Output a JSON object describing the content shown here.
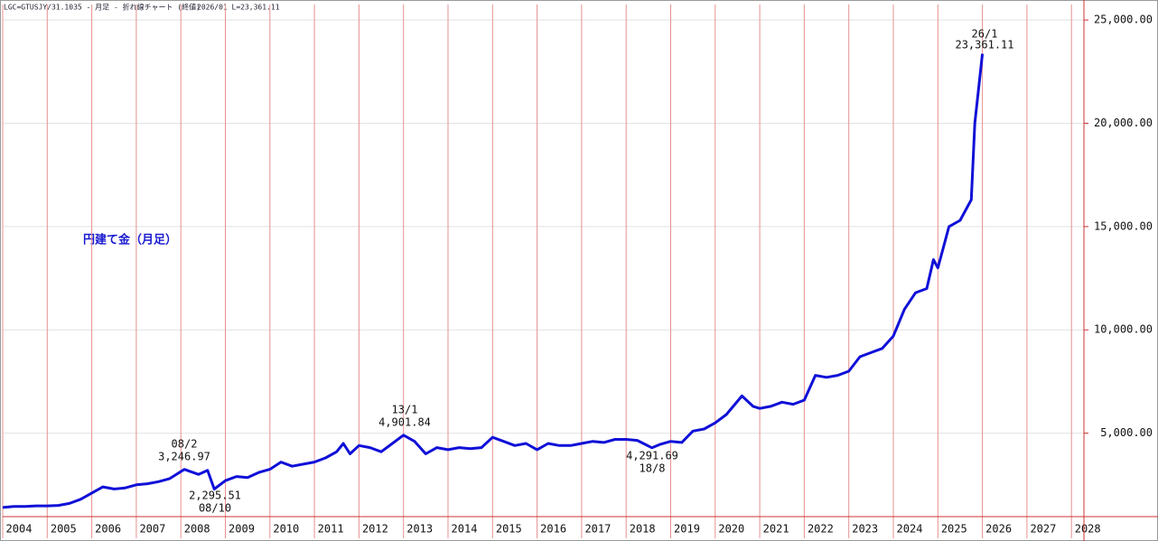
{
  "chart_data": {
    "type": "line",
    "header": "LGC=GTUSJY/31.1035 - 月足 - 折れ線チャート (終値)",
    "header_value": "2026/01 L=23,361.11",
    "label": "円建て金（月足）",
    "annotations": [
      [
        "08/2",
        "3,246.97"
      ],
      [
        "2,295.51",
        "08/10"
      ],
      [
        "13/1",
        "4,901.84"
      ],
      [
        "4,291.69",
        "18/8"
      ],
      [
        "26/1",
        "23,361.11"
      ]
    ],
    "x": [
      2004.0,
      2004.25,
      2004.5,
      2004.75,
      2005.0,
      2005.25,
      2005.5,
      2005.75,
      2006.0,
      2006.25,
      2006.5,
      2006.75,
      2007.0,
      2007.25,
      2007.5,
      2007.75,
      2008.08,
      2008.4,
      2008.6,
      2008.75,
      2009.0,
      2009.25,
      2009.5,
      2009.75,
      2010.0,
      2010.25,
      2010.5,
      2010.75,
      2011.0,
      2011.25,
      2011.5,
      2011.65,
      2011.8,
      2012.0,
      2012.25,
      2012.5,
      2012.75,
      2013.0,
      2013.25,
      2013.5,
      2013.75,
      2014.0,
      2014.25,
      2014.5,
      2014.75,
      2015.0,
      2015.25,
      2015.5,
      2015.75,
      2016.0,
      2016.25,
      2016.5,
      2016.75,
      2017.0,
      2017.25,
      2017.5,
      2017.75,
      2018.0,
      2018.25,
      2018.58,
      2018.75,
      2019.0,
      2019.25,
      2019.5,
      2019.75,
      2020.0,
      2020.25,
      2020.6,
      2020.85,
      2021.0,
      2021.25,
      2021.5,
      2021.75,
      2022.0,
      2022.25,
      2022.5,
      2022.75,
      2023.0,
      2023.25,
      2023.5,
      2023.75,
      2024.0,
      2024.25,
      2024.5,
      2024.75,
      2024.9,
      2025.0,
      2025.25,
      2025.5,
      2025.75,
      2025.83,
      2025.92,
      2026.0
    ],
    "series": [
      {
        "name": "LGC=GTUSJY/31.1035",
        "color": "#1010d8",
        "values": [
          1400,
          1450,
          1450,
          1480,
          1480,
          1500,
          1600,
          1800,
          2100,
          2400,
          2300,
          2350,
          2500,
          2550,
          2650,
          2800,
          3246.97,
          3000,
          3200,
          2295.51,
          2700,
          2900,
          2850,
          3100,
          3250,
          3600,
          3400,
          3500,
          3600,
          3800,
          4100,
          4500,
          4000,
          4400,
          4300,
          4100,
          4500,
          4901.84,
          4600,
          4000,
          4300,
          4200,
          4300,
          4250,
          4300,
          4800,
          4600,
          4400,
          4500,
          4200,
          4500,
          4400,
          4400,
          4500,
          4600,
          4550,
          4700,
          4700,
          4650,
          4291.69,
          4450,
          4600,
          4550,
          5100,
          5200,
          5500,
          5900,
          6800,
          6300,
          6200,
          6300,
          6500,
          6400,
          6600,
          7800,
          7700,
          7800,
          8000,
          8700,
          8900,
          9100,
          9700,
          11000,
          11800,
          12000,
          13400,
          13000,
          15000,
          15300,
          16300,
          20000,
          21800,
          23361.11
        ]
      }
    ],
    "xlim": [
      2004,
      2028.28
    ],
    "xticks": [
      2004,
      2005,
      2006,
      2007,
      2008,
      2009,
      2010,
      2011,
      2012,
      2013,
      2014,
      2015,
      2016,
      2017,
      2018,
      2019,
      2020,
      2021,
      2022,
      2023,
      2024,
      2025,
      2026,
      2027,
      2028
    ],
    "ylim": [
      960,
      25750
    ],
    "yticks": [
      {
        "value": 5000,
        "label": "5,000.00"
      },
      {
        "value": 10000,
        "label": "10,000.00"
      },
      {
        "value": 15000,
        "label": "15,000.00"
      },
      {
        "value": 20000,
        "label": "20,000.00"
      },
      {
        "value": 25000,
        "label": "25,000.00"
      }
    ],
    "grid": true
  }
}
